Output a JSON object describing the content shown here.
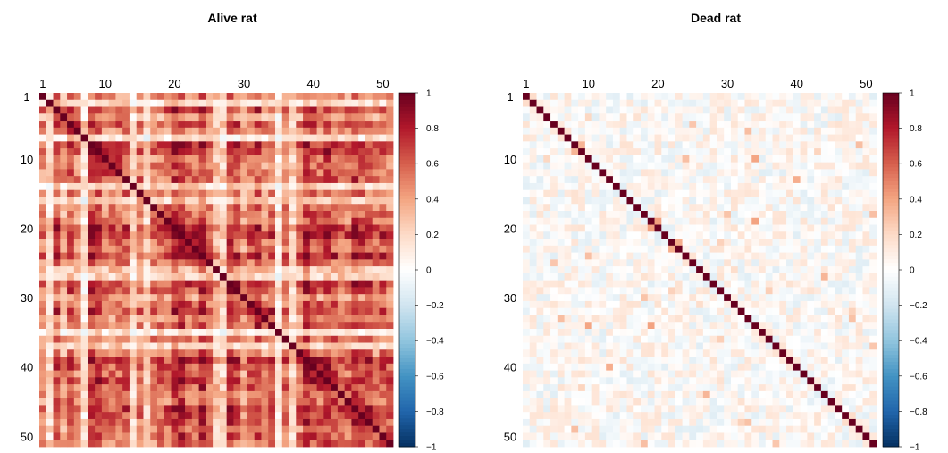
{
  "chart_data": [
    {
      "type": "heatmap",
      "title": "Alive rat",
      "n": 51,
      "x_ticks": [
        1,
        10,
        20,
        30,
        40,
        50
      ],
      "y_ticks": [
        1,
        10,
        20,
        30,
        40,
        50
      ],
      "clim": [
        -1,
        1
      ],
      "colorbar_ticks": [
        "1",
        "0.8",
        "0.6",
        "0.4",
        "0.2",
        "0",
        "−0.2",
        "−0.4",
        "−0.6",
        "−0.8",
        "−1"
      ],
      "colorbar_values": [
        1,
        0.8,
        0.6,
        0.4,
        0.2,
        0,
        -0.2,
        -0.4,
        -0.6,
        -0.8,
        -1
      ],
      "colormap": [
        "#053061",
        "#2166ac",
        "#4393c3",
        "#92c5de",
        "#d1e5f0",
        "#ffffff",
        "#fddbc7",
        "#f4a582",
        "#d6604d",
        "#b2182b",
        "#67001f"
      ],
      "diagonal": 1,
      "mean_offdiagonal": 0.35,
      "seed": 7
    },
    {
      "type": "heatmap",
      "title": "Dead rat",
      "n": 51,
      "x_ticks": [
        1,
        10,
        20,
        30,
        40,
        50
      ],
      "y_ticks": [
        1,
        10,
        20,
        30,
        40,
        50
      ],
      "clim": [
        -1,
        1
      ],
      "colorbar_ticks": [
        "1",
        "0.8",
        "0.6",
        "0.4",
        "0.2",
        "0",
        "−0.2",
        "−0.4",
        "−0.6",
        "−0.8",
        "−1"
      ],
      "colorbar_values": [
        1,
        0.8,
        0.6,
        0.4,
        0.2,
        0,
        -0.2,
        -0.4,
        -0.6,
        -0.8,
        -1
      ],
      "colormap": [
        "#053061",
        "#2166ac",
        "#4393c3",
        "#92c5de",
        "#d1e5f0",
        "#ffffff",
        "#fddbc7",
        "#f4a582",
        "#d6604d",
        "#b2182b",
        "#67001f"
      ],
      "diagonal": 1,
      "mean_offdiagonal": 0.03,
      "seed": 19
    }
  ]
}
